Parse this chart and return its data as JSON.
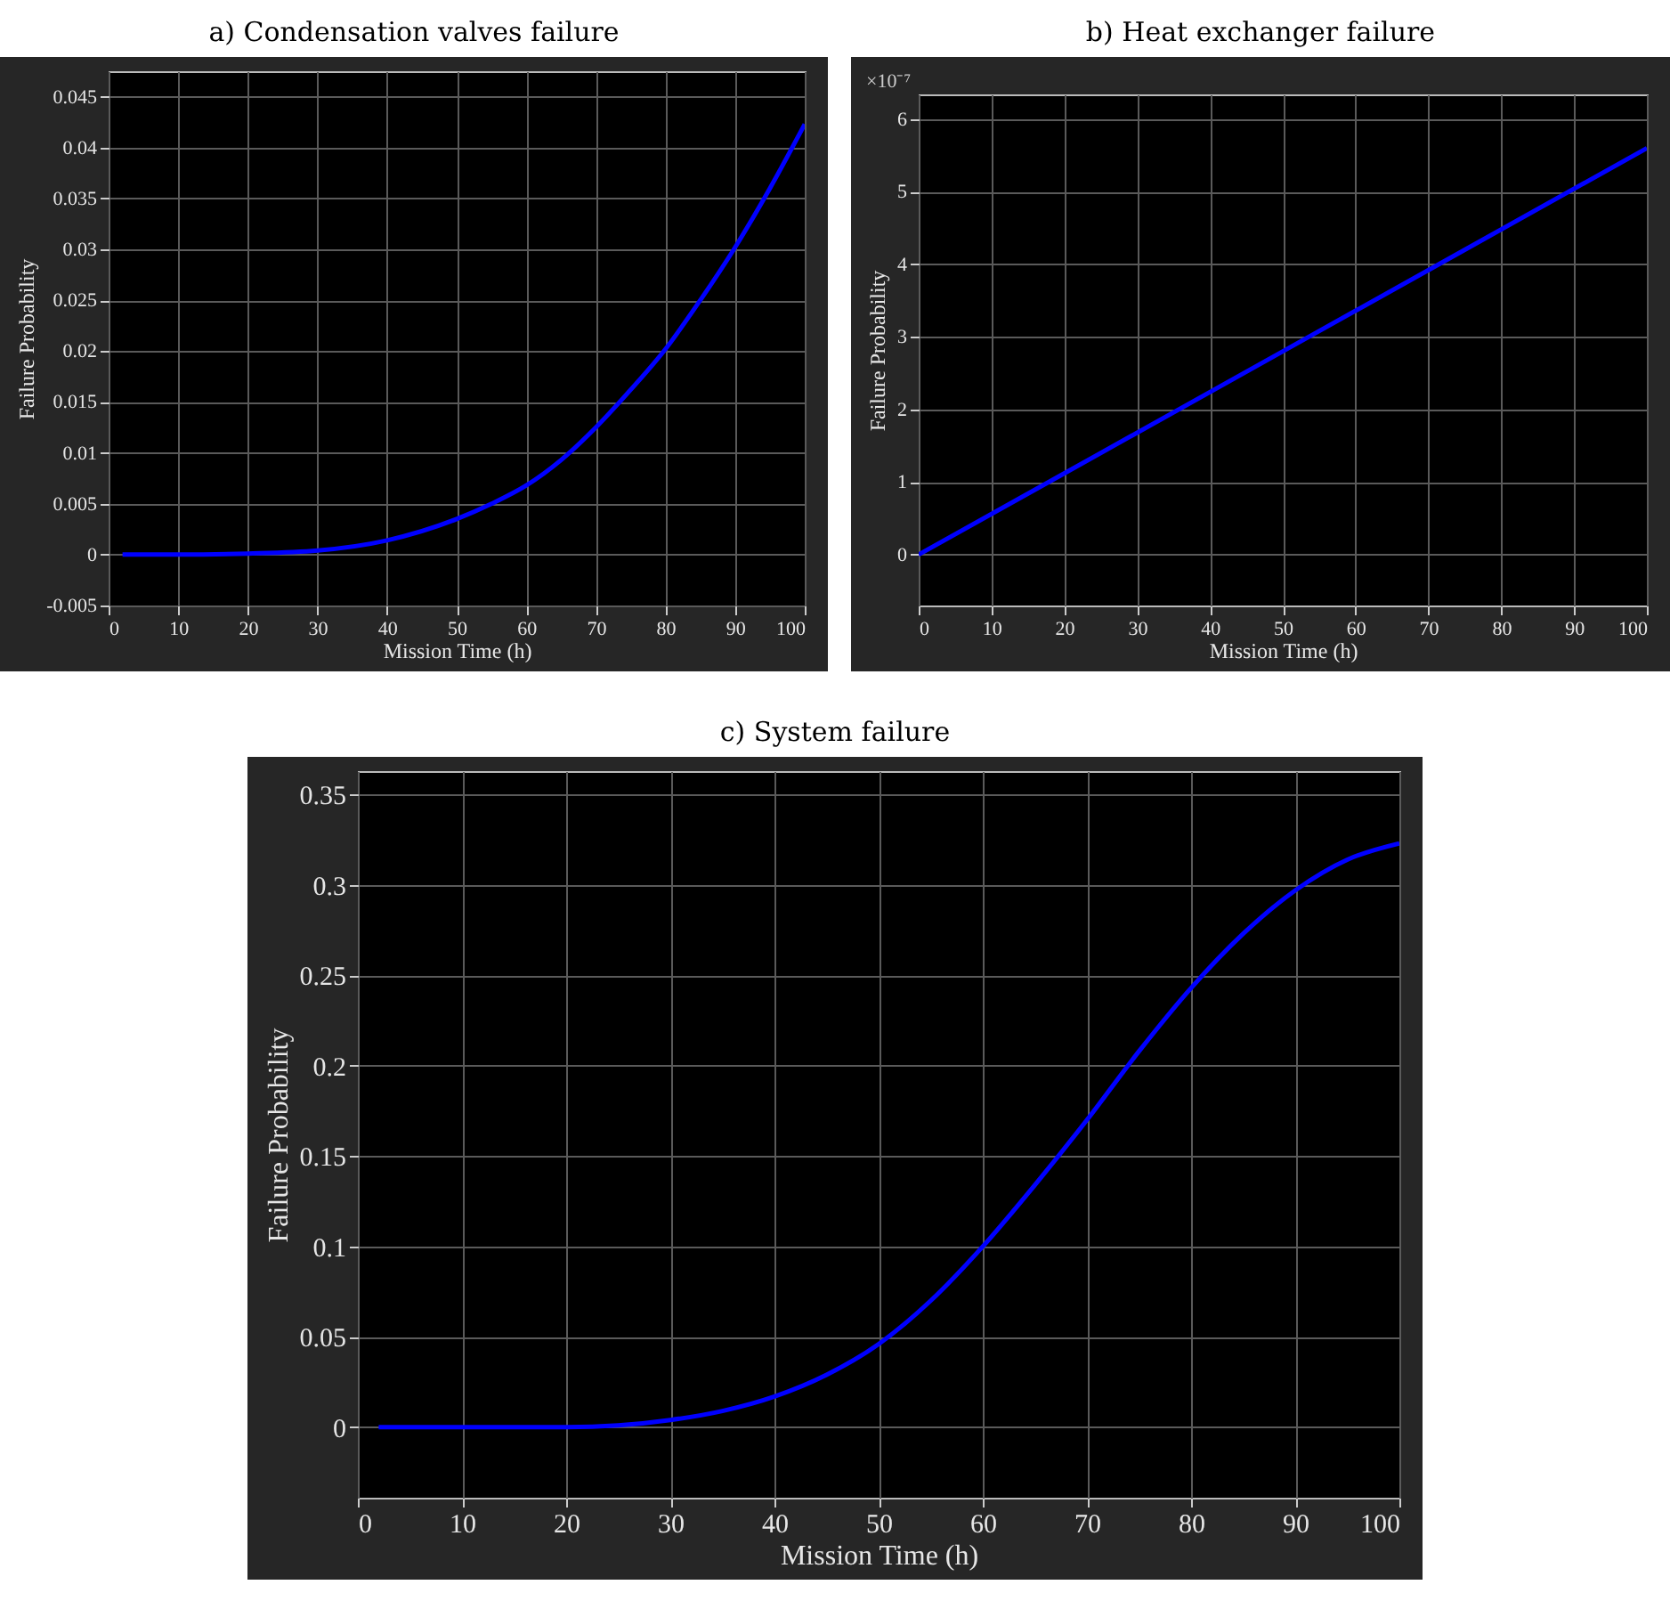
{
  "chart_data": [
    {
      "type": "line",
      "title": "a) Condensation valves failure",
      "xlabel": "Mission Time (h)",
      "ylabel": "Failure Probability",
      "xlim": [
        0,
        100
      ],
      "xticks": [
        0,
        10,
        20,
        30,
        40,
        50,
        60,
        70,
        80,
        90,
        100
      ],
      "ylim": [
        -0.005,
        0.0475
      ],
      "yticks": [
        -0.005,
        0,
        0.005,
        0.01,
        0.015,
        0.02,
        0.025,
        0.03,
        0.035,
        0.04,
        0.045
      ],
      "grid": true,
      "marker": "none",
      "line_style": "solid",
      "series": [
        {
          "color": "#0000ff",
          "x": [
            2,
            10,
            20,
            30,
            40,
            50,
            55,
            60,
            65,
            70,
            75,
            80,
            85,
            90,
            95,
            100
          ],
          "values": [
            0,
            0,
            0.0001,
            0.0004,
            0.0014,
            0.0035,
            0.005,
            0.0068,
            0.0093,
            0.0125,
            0.0162,
            0.0202,
            0.025,
            0.0302,
            0.036,
            0.0423
          ]
        }
      ]
    },
    {
      "type": "line",
      "title": "b) Heat exchanger failure",
      "xlabel": "Mission Time (h)",
      "ylabel": "Failure Probability",
      "annotations": [
        "×10⁻⁷"
      ],
      "xlim": [
        0,
        100
      ],
      "xticks": [
        0,
        10,
        20,
        30,
        40,
        50,
        60,
        70,
        80,
        90,
        100
      ],
      "ylim": [
        -0.7,
        6.34
      ],
      "yticks": [
        0,
        1,
        2,
        3,
        4,
        5,
        6
      ],
      "grid": true,
      "marker": "none",
      "line_style": "solid",
      "series": [
        {
          "color": "#0000ff",
          "x": [
            0,
            50,
            100
          ],
          "values": [
            0,
            2.8,
            5.6
          ]
        }
      ]
    },
    {
      "type": "line",
      "title": "c) System failure",
      "xlabel": "Mission Time (h)",
      "ylabel": "Failure Probability",
      "xlim": [
        0,
        100
      ],
      "xticks": [
        0,
        10,
        20,
        30,
        40,
        50,
        60,
        70,
        80,
        90,
        100
      ],
      "ylim": [
        -0.039,
        0.363
      ],
      "yticks": [
        0,
        0.05,
        0.1,
        0.15,
        0.2,
        0.25,
        0.3,
        0.35
      ],
      "grid": true,
      "marker": "none",
      "line_style": "solid",
      "series": [
        {
          "color": "#0000ff",
          "x": [
            2,
            10,
            20,
            25,
            30,
            35,
            40,
            45,
            50,
            55,
            60,
            65,
            70,
            75,
            80,
            85,
            90,
            95,
            100
          ],
          "values": [
            0,
            0,
            0,
            0.001,
            0.004,
            0.009,
            0.017,
            0.029,
            0.046,
            0.07,
            0.1,
            0.134,
            0.17,
            0.208,
            0.243,
            0.273,
            0.297,
            0.314,
            0.323
          ]
        }
      ]
    }
  ]
}
